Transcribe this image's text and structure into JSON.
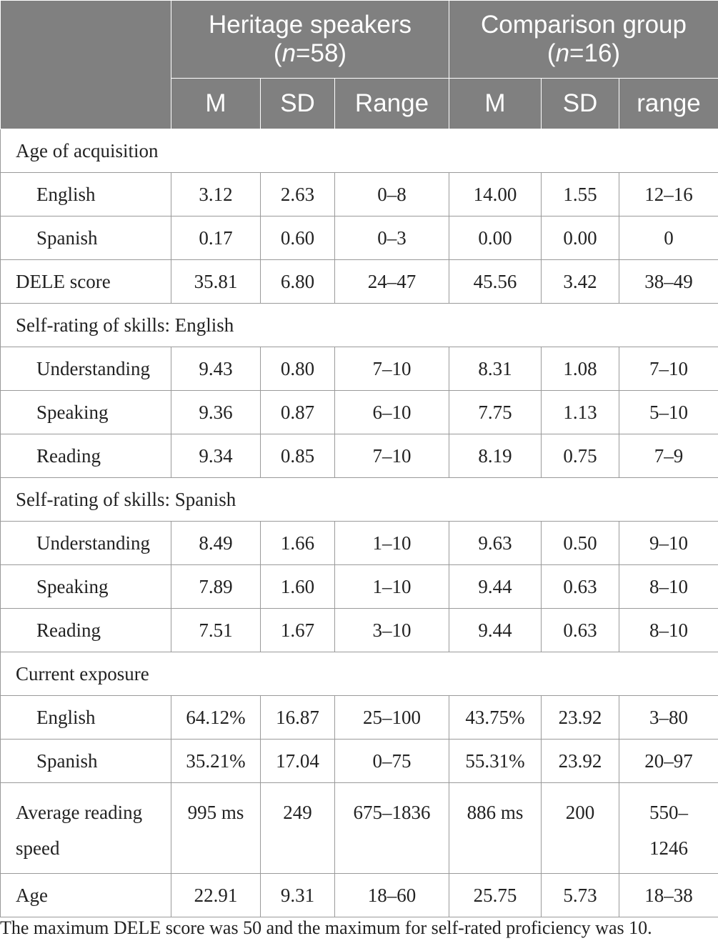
{
  "header": {
    "group1_title": "Heritage speakers",
    "group1_n_var": "n",
    "group1_n_val": "=58)",
    "group2_title": "Comparison group",
    "group2_n_var": "n",
    "group2_n_val": "=16)",
    "open_paren": "(",
    "cols": [
      "M",
      "SD",
      "Range",
      "M",
      "SD",
      "range"
    ]
  },
  "rows": [
    {
      "label": "Age of acquisition",
      "section": true
    },
    {
      "label": "English",
      "values": [
        "3.12",
        "2.63",
        "0–8",
        "14.00",
        "1.55",
        "12–16"
      ]
    },
    {
      "label": "Spanish",
      "values": [
        "0.17",
        "0.60",
        "0–3",
        "0.00",
        "0.00",
        "0"
      ]
    },
    {
      "label": "DELE score",
      "values": [
        "35.81",
        "6.80",
        "24–47",
        "45.56",
        "3.42",
        "38–49"
      ]
    },
    {
      "label": "Self-rating of skills: English",
      "section": true
    },
    {
      "label": "Understanding",
      "values": [
        "9.43",
        "0.80",
        "7–10",
        "8.31",
        "1.08",
        "7–10"
      ]
    },
    {
      "label": "Speaking",
      "values": [
        "9.36",
        "0.87",
        "6–10",
        "7.75",
        "1.13",
        "5–10"
      ]
    },
    {
      "label": "Reading",
      "values": [
        "9.34",
        "0.85",
        "7–10",
        "8.19",
        "0.75",
        "7–9"
      ]
    },
    {
      "label": "Self-rating of skills: Spanish",
      "section": true
    },
    {
      "label": "Understanding",
      "values": [
        "8.49",
        "1.66",
        "1–10",
        "9.63",
        "0.50",
        "9–10"
      ]
    },
    {
      "label": "Speaking",
      "values": [
        "7.89",
        "1.60",
        "1–10",
        "9.44",
        "0.63",
        "8–10"
      ]
    },
    {
      "label": "Reading",
      "values": [
        "7.51",
        "1.67",
        "3–10",
        "9.44",
        "0.63",
        "8–10"
      ]
    },
    {
      "label": "Current exposure",
      "section": true
    },
    {
      "label": "English",
      "values": [
        "64.12%",
        "16.87",
        "25–100",
        "43.75%",
        "23.92",
        "3–80"
      ]
    },
    {
      "label": "Spanish",
      "values": [
        "35.21%",
        "17.04",
        "0–75",
        "55.31%",
        "23.92",
        "20–97"
      ]
    },
    {
      "label_line1": "Average reading",
      "label_line2": "speed",
      "values": [
        "995 ms",
        "249",
        "675–1836",
        "886 ms",
        "200"
      ],
      "last_line1": "550–",
      "last_line2": "1246"
    },
    {
      "label": "Age",
      "values": [
        "22.91",
        "9.31",
        "18–60",
        "25.75",
        "5.73",
        "18–38"
      ]
    }
  ],
  "note": "The maximum DELE score was 50 and the maximum for self-rated proficiency was 10."
}
